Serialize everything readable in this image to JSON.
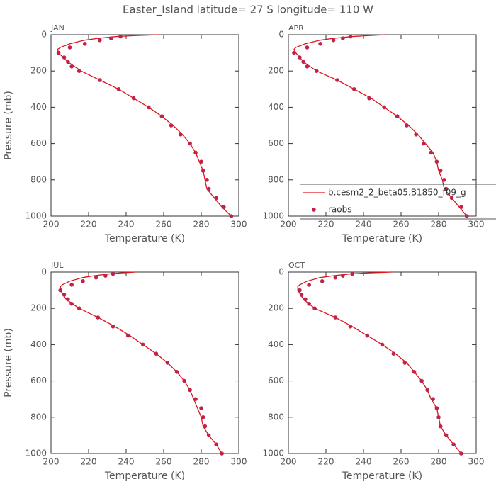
{
  "title": "Easter_Island  latitude= 27 S longitude= 110 W",
  "chart_data": [
    {
      "type": "line",
      "title": "JAN",
      "x_label": "Temperature (K)",
      "y_label": "Pressure (mb)",
      "xlim": [
        200,
        300
      ],
      "xticks": [
        200,
        220,
        240,
        260,
        280,
        300
      ],
      "ylim": [
        1000,
        0
      ],
      "yticks": [
        0,
        200,
        400,
        600,
        800,
        1000
      ],
      "series": [
        {
          "type": "line",
          "color": "#e0141c",
          "x": [
            258,
            245,
            235,
            225,
            218,
            210,
            205,
            203.5,
            204,
            209,
            216,
            226,
            236,
            244,
            252,
            259,
            265,
            270,
            274,
            277,
            279,
            281,
            282,
            283,
            287,
            291,
            296
          ],
          "values": [
            0,
            5,
            10,
            20,
            30,
            50,
            70,
            80,
            100,
            150,
            200,
            250,
            300,
            350,
            400,
            450,
            500,
            550,
            600,
            650,
            700,
            750,
            800,
            850,
            900,
            950,
            1000
          ]
        },
        {
          "type": "scatter",
          "color": "#c0234a",
          "x": [
            237,
            232,
            226,
            218,
            210,
            204,
            207,
            209,
            211,
            215,
            226,
            236,
            244,
            252,
            259,
            264,
            269,
            274,
            277,
            280,
            281,
            283,
            284,
            288,
            292,
            296
          ],
          "values": [
            10,
            20,
            30,
            50,
            70,
            100,
            125,
            150,
            175,
            200,
            250,
            300,
            350,
            400,
            450,
            500,
            550,
            600,
            650,
            700,
            750,
            800,
            850,
            900,
            950,
            1000
          ]
        }
      ]
    },
    {
      "type": "line",
      "title": "APR",
      "x_label": "Temperature (K)",
      "xlim": [
        200,
        300
      ],
      "xticks": [
        200,
        220,
        240,
        260,
        280,
        300
      ],
      "ylim": [
        1000,
        0
      ],
      "yticks": [
        0,
        200,
        400,
        600,
        800,
        1000
      ],
      "legend": "lower right",
      "series": [
        {
          "type": "line",
          "name": "b.cesm2_2_beta05.B1850_f09_g",
          "color": "#e0141c",
          "x": [
            252,
            243,
            234,
            224,
            217,
            209,
            204,
            203,
            204,
            208,
            215,
            226,
            235,
            244,
            251,
            258,
            264,
            269,
            273,
            277,
            279,
            280,
            282,
            283,
            287,
            291,
            295
          ],
          "values": [
            0,
            5,
            10,
            20,
            30,
            50,
            70,
            80,
            100,
            150,
            200,
            250,
            300,
            350,
            400,
            450,
            500,
            550,
            600,
            650,
            700,
            750,
            800,
            850,
            900,
            950,
            1000
          ]
        },
        {
          "type": "scatter",
          "name": "raobs",
          "color": "#c0234a",
          "x": [
            233,
            229,
            224,
            217,
            210,
            203,
            206,
            208,
            210,
            215,
            226,
            235,
            243,
            251,
            258,
            263,
            268,
            272,
            276,
            279,
            281,
            283,
            284,
            287,
            292,
            295
          ],
          "values": [
            10,
            20,
            30,
            50,
            70,
            100,
            125,
            150,
            175,
            200,
            250,
            300,
            350,
            400,
            450,
            500,
            550,
            600,
            650,
            700,
            750,
            800,
            850,
            900,
            950,
            1000
          ]
        }
      ]
    },
    {
      "type": "line",
      "title": "JUL",
      "x_label": "Temperature (K)",
      "y_label": "Pressure (mb)",
      "xlim": [
        200,
        300
      ],
      "xticks": [
        200,
        220,
        240,
        260,
        280,
        300
      ],
      "ylim": [
        1000,
        0
      ],
      "yticks": [
        0,
        200,
        400,
        600,
        800,
        1000
      ],
      "series": [
        {
          "type": "line",
          "color": "#e0141c",
          "x": [
            245,
            237,
            231,
            223,
            217,
            210,
            206,
            205,
            205,
            208,
            215,
            225,
            234,
            242,
            249,
            256,
            262,
            267,
            271,
            274,
            276,
            278,
            280,
            281,
            284,
            288,
            291
          ],
          "values": [
            0,
            5,
            10,
            20,
            30,
            50,
            70,
            80,
            100,
            150,
            200,
            250,
            300,
            350,
            400,
            450,
            500,
            550,
            600,
            650,
            700,
            750,
            800,
            850,
            900,
            950,
            1000
          ]
        },
        {
          "type": "scatter",
          "color": "#c0234a",
          "x": [
            233,
            229,
            224,
            217,
            211,
            205,
            207,
            209,
            211,
            215,
            225,
            233,
            241,
            249,
            256,
            262,
            267,
            271,
            274,
            277,
            280,
            281,
            282,
            284,
            288,
            291
          ],
          "values": [
            10,
            20,
            30,
            50,
            70,
            100,
            125,
            150,
            175,
            200,
            250,
            300,
            350,
            400,
            450,
            500,
            550,
            600,
            650,
            700,
            750,
            800,
            850,
            900,
            950,
            1000
          ]
        }
      ]
    },
    {
      "type": "line",
      "title": "OCT",
      "x_label": "Temperature (K)",
      "xlim": [
        200,
        300
      ],
      "xticks": [
        200,
        220,
        240,
        260,
        280,
        300
      ],
      "ylim": [
        1000,
        0
      ],
      "yticks": [
        0,
        200,
        400,
        600,
        800,
        1000
      ],
      "series": [
        {
          "type": "line",
          "color": "#e0141c",
          "x": [
            255,
            242,
            233,
            224,
            217,
            210,
            206,
            205,
            205,
            208,
            214,
            225,
            234,
            242,
            250,
            257,
            263,
            267,
            271,
            274,
            276,
            279,
            280,
            281,
            284,
            288,
            292
          ],
          "values": [
            0,
            5,
            10,
            20,
            30,
            50,
            70,
            80,
            100,
            150,
            200,
            250,
            300,
            350,
            400,
            450,
            500,
            550,
            600,
            650,
            700,
            750,
            800,
            850,
            900,
            950,
            1000
          ]
        },
        {
          "type": "scatter",
          "color": "#c0234a",
          "x": [
            234,
            229,
            225,
            218,
            211,
            206,
            207,
            209,
            211,
            214,
            225,
            233,
            242,
            250,
            256,
            262,
            267,
            271,
            274,
            277,
            279,
            280,
            281,
            284,
            288,
            292
          ],
          "values": [
            10,
            20,
            30,
            50,
            70,
            100,
            125,
            150,
            175,
            200,
            250,
            300,
            350,
            400,
            450,
            500,
            550,
            600,
            650,
            700,
            750,
            800,
            850,
            900,
            950,
            1000
          ]
        }
      ]
    }
  ]
}
